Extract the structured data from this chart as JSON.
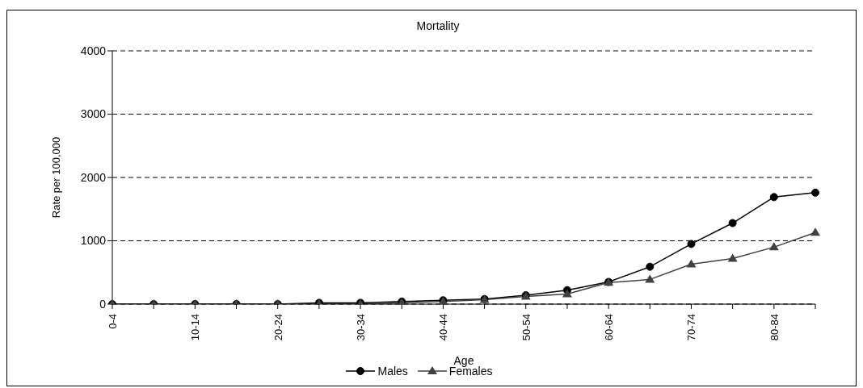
{
  "chart_data": {
    "type": "line",
    "title": "Mortality",
    "xlabel": "Age",
    "ylabel": "Rate per 100,000",
    "categories": [
      "0-4",
      null,
      "10-14",
      null,
      "20-24",
      null,
      "30-34",
      null,
      "40-44",
      null,
      "50-54",
      null,
      "60-64",
      null,
      "70-74",
      null,
      "80-84",
      null
    ],
    "series": [
      {
        "name": "Males",
        "color": "#000000",
        "marker": "circle",
        "values": [
          0,
          0,
          0,
          0,
          0,
          20,
          20,
          40,
          60,
          80,
          140,
          220,
          350,
          590,
          950,
          1280,
          1690,
          1760
        ]
      },
      {
        "name": "Females",
        "color": "#404040",
        "marker": "triangle",
        "values": [
          0,
          0,
          0,
          0,
          0,
          0,
          0,
          20,
          40,
          70,
          120,
          160,
          340,
          390,
          630,
          720,
          900,
          1130
        ]
      }
    ],
    "ylim": [
      0,
      4000
    ],
    "yticks": [
      0,
      1000,
      2000,
      3000,
      4000
    ],
    "grid": "y",
    "legend": "bottom",
    "line_style": "solid"
  }
}
